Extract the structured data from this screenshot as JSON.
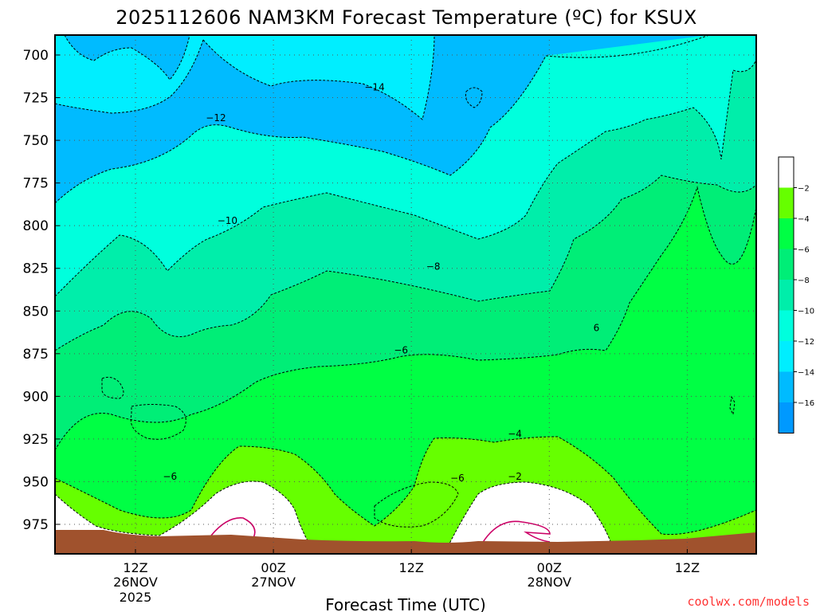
{
  "title": "2025112606 NAM3KM Forecast Temperature (ºC) for KSUX",
  "credit": "coolwx.com/models",
  "chart_data": {
    "type": "heatmap",
    "title": "2025112606 NAM3KM Forecast Temperature (ºC) for KSUX",
    "xlabel": "Forecast Time (UTC)",
    "ylabel": "",
    "y_axis": {
      "labels": [
        "700",
        "725",
        "750",
        "775",
        "800",
        "825",
        "850",
        "875",
        "900",
        "925",
        "950",
        "975"
      ],
      "values": [
        700,
        725,
        750,
        775,
        800,
        825,
        850,
        875,
        900,
        925,
        950,
        975
      ],
      "inverted": true
    },
    "x_axis": {
      "ticks": [
        {
          "hour": 6,
          "line1": "12Z",
          "line2": "26NOV",
          "line3": "2025"
        },
        {
          "hour": 18,
          "line1": "00Z",
          "line2": "27NOV",
          "line3": ""
        },
        {
          "hour": 30,
          "line1": "12Z",
          "line2": "",
          "line3": ""
        },
        {
          "hour": 42,
          "line1": "00Z",
          "line2": "28NOV",
          "line3": ""
        },
        {
          "hour": 54,
          "line1": "12Z",
          "line2": "",
          "line3": ""
        }
      ],
      "range_hours": [
        0,
        60
      ]
    },
    "grid": true,
    "contour_interval": 2,
    "contour_labels": [
      {
        "text": "−14",
        "hour": 26.8,
        "p": 719
      },
      {
        "text": "−12",
        "hour": 13.0,
        "p": 737
      },
      {
        "text": "−10",
        "hour": 14.0,
        "p": 797
      },
      {
        "text": "−8",
        "hour": 31.9,
        "p": 824
      },
      {
        "text": "−6",
        "hour": 29.1,
        "p": 873
      },
      {
        "text": "6",
        "hour": 46.1,
        "p": 860
      },
      {
        "text": "−6",
        "hour": 9.0,
        "p": 947
      },
      {
        "text": "−6",
        "hour": 34.0,
        "p": 948
      },
      {
        "text": "−4",
        "hour": 39.0,
        "p": 922
      },
      {
        "text": "−2",
        "hour": 39.0,
        "p": 947
      }
    ],
    "colorbar": {
      "levels": [
        "−2",
        "−4",
        "−6",
        "−8",
        "−10",
        "−12",
        "−14",
        "−16"
      ],
      "colors": [
        "#ffffff",
        "#66ff00",
        "#00ff44",
        "#00ee77",
        "#00eeaa",
        "#00ffdd",
        "#00eeff",
        "#00bbff",
        "#0099ff"
      ]
    },
    "colors": {
      "surface": "#a0522d",
      "zero_line": "#cc0066"
    }
  }
}
